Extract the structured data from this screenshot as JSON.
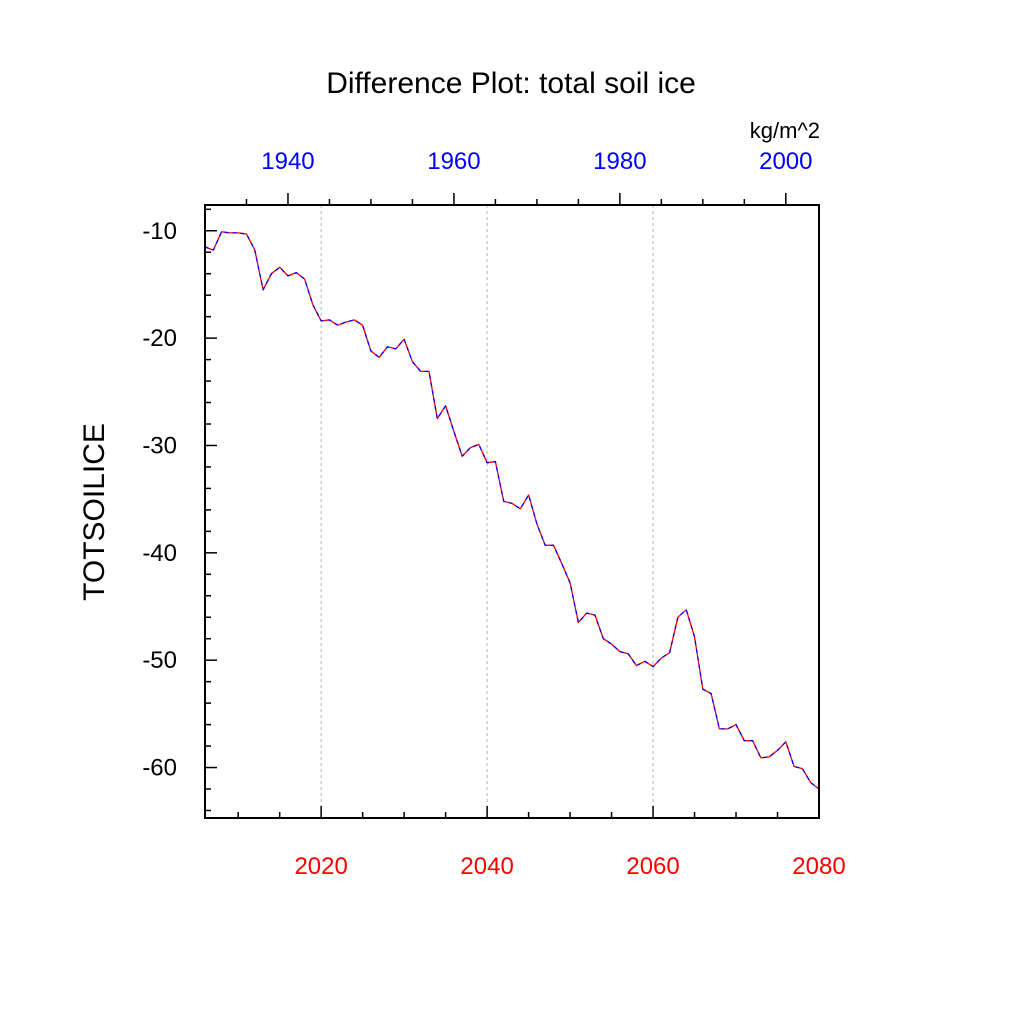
{
  "chart_data": {
    "type": "line",
    "title": "Difference Plot: total soil ice",
    "ylabel": "TOTSOILICE",
    "units": "kg/m^2",
    "grid": "vertical dashed lines at bottom-axis major ticks",
    "xlim_bottom": [
      2006,
      2080
    ],
    "xlim_top": [
      1930,
      2004
    ],
    "ylim": [
      -64.7,
      -7.6
    ],
    "bottom_ticks": [
      2020,
      2040,
      2060,
      2080
    ],
    "bottom_tick_labels": [
      "2020",
      "2040",
      "2060",
      "2080"
    ],
    "top_ticks": [
      1940,
      1960,
      1980,
      2000
    ],
    "top_tick_labels": [
      "1940",
      "1960",
      "1980",
      "2000"
    ],
    "y_ticks": [
      -10,
      -20,
      -30,
      -40,
      -50,
      -60
    ],
    "y_tick_labels": [
      "-10",
      "-20",
      "-30",
      "-40",
      "-50",
      "-60"
    ],
    "colors": {
      "bottom_axis_labels": "#ff0000",
      "top_axis_labels": "#0000ff",
      "line_primary": "#ff0000",
      "line_dash": "#0000ff",
      "grid": "#b4b4b4"
    },
    "series": [
      {
        "x": [
          2006,
          2007,
          2008,
          2009,
          2010,
          2011,
          2012,
          2013,
          2014,
          2015,
          2016,
          2017,
          2018,
          2019,
          2020,
          2021,
          2022,
          2023,
          2024,
          2025,
          2026,
          2027,
          2028,
          2029,
          2030,
          2031,
          2032,
          2033,
          2034,
          2035,
          2036,
          2037,
          2038,
          2039,
          2040,
          2041,
          2042,
          2043,
          2044,
          2045,
          2046,
          2047,
          2048,
          2049,
          2050,
          2051,
          2052,
          2053,
          2054,
          2055,
          2056,
          2057,
          2058,
          2059,
          2060,
          2061,
          2062,
          2063,
          2064,
          2065,
          2066,
          2067,
          2068,
          2069,
          2070,
          2071,
          2072,
          2073,
          2074,
          2075,
          2076,
          2077,
          2078,
          2079,
          2080
        ],
        "values": [
          -11.5,
          -11.8,
          -10.1,
          -10.2,
          -10.2,
          -10.3,
          -11.8,
          -15.5,
          -14.0,
          -13.4,
          -14.2,
          -13.9,
          -14.5,
          -16.9,
          -18.4,
          -18.3,
          -18.8,
          -18.5,
          -18.3,
          -18.8,
          -21.2,
          -21.8,
          -20.8,
          -21.0,
          -20.1,
          -22.2,
          -23.1,
          -23.1,
          -27.5,
          -26.3,
          -28.7,
          -31.0,
          -30.2,
          -29.9,
          -31.6,
          -31.5,
          -35.2,
          -35.4,
          -35.9,
          -34.6,
          -37.3,
          -39.3,
          -39.3,
          -41.0,
          -42.8,
          -46.5,
          -45.6,
          -45.8,
          -48.0,
          -48.5,
          -49.2,
          -49.4,
          -50.5,
          -50.1,
          -50.6,
          -49.8,
          -49.3,
          -46.0,
          -45.3,
          -47.8,
          -52.7,
          -53.1,
          -56.4,
          -56.4,
          -56.0,
          -57.5,
          -57.5,
          -59.1,
          -59.0,
          -58.4,
          -57.6,
          -59.9,
          -60.1,
          -61.4,
          -62.0
        ]
      }
    ]
  }
}
